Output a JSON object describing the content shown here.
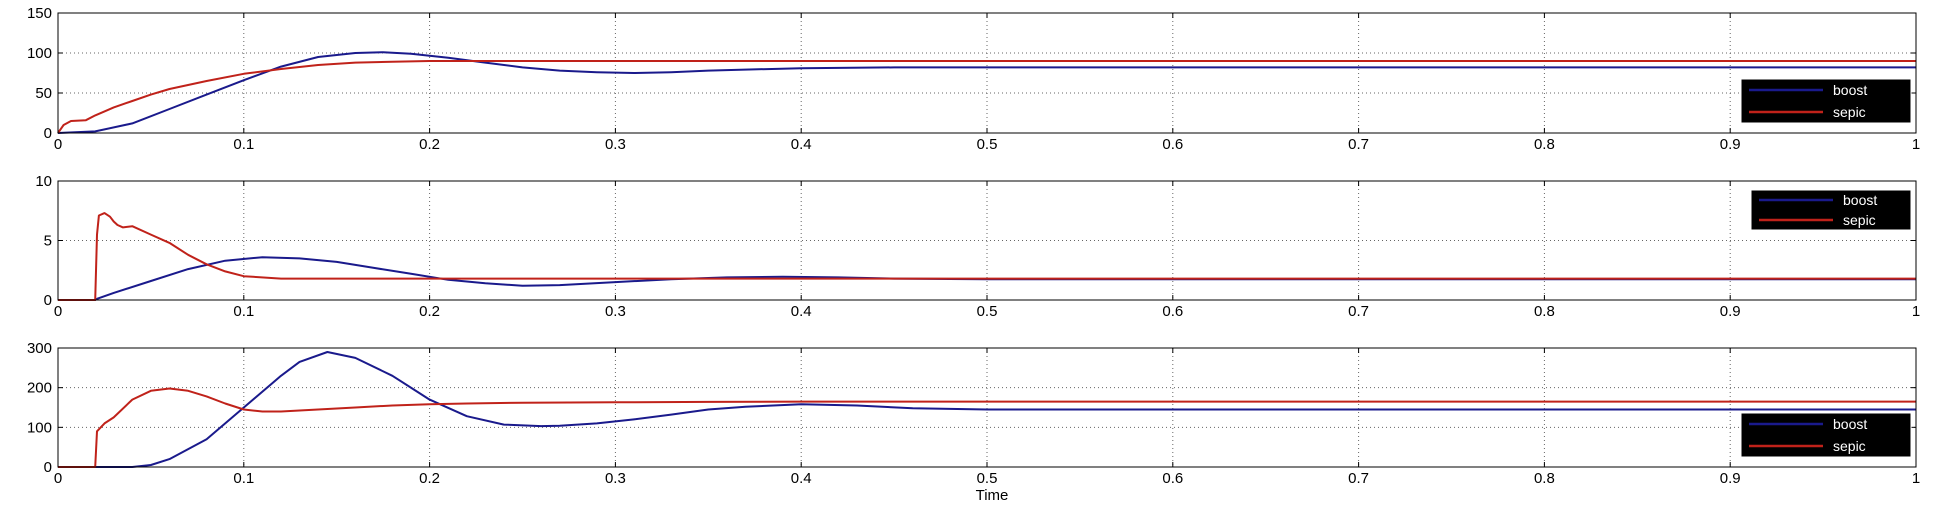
{
  "xlabel": "Time",
  "colors": {
    "boost": "#1a1a8c",
    "sepic": "#c0221a",
    "legend_bg": "#000000"
  },
  "chart_data": [
    {
      "type": "line",
      "xlim": [
        0,
        1
      ],
      "ylim": [
        0,
        150
      ],
      "xticks": [
        "0",
        "0.1",
        "0.2",
        "0.3",
        "0.4",
        "0.5",
        "0.6",
        "0.7",
        "0.8",
        "0.9",
        "1"
      ],
      "yticks": [
        "0",
        "50",
        "100",
        "150"
      ],
      "grid": true,
      "legend_position": "bottom-right",
      "series": [
        {
          "name": "boost",
          "x": [
            0,
            0.02,
            0.04,
            0.06,
            0.08,
            0.1,
            0.12,
            0.14,
            0.16,
            0.175,
            0.19,
            0.21,
            0.23,
            0.25,
            0.27,
            0.29,
            0.31,
            0.33,
            0.35,
            0.4,
            0.45,
            0.5,
            0.6,
            0.7,
            0.8,
            0.9,
            1.0
          ],
          "y": [
            0,
            2,
            12,
            30,
            48,
            66,
            83,
            95,
            100,
            101,
            99,
            94,
            88,
            82,
            78,
            76,
            75,
            76,
            78,
            81,
            82,
            82,
            82,
            82,
            82,
            82,
            82
          ]
        },
        {
          "name": "sepic",
          "x": [
            0,
            0.003,
            0.007,
            0.015,
            0.02,
            0.025,
            0.03,
            0.04,
            0.05,
            0.06,
            0.08,
            0.1,
            0.12,
            0.14,
            0.16,
            0.18,
            0.2,
            0.22,
            0.25,
            0.3,
            0.4,
            0.5,
            0.6,
            0.7,
            0.8,
            0.9,
            1.0
          ],
          "y": [
            0,
            10,
            15,
            16,
            22,
            27,
            32,
            40,
            48,
            55,
            65,
            74,
            80,
            85,
            88,
            89,
            90,
            90,
            90,
            90,
            90,
            90,
            90,
            90,
            90,
            90,
            90
          ]
        }
      ]
    },
    {
      "type": "line",
      "xlim": [
        0,
        1
      ],
      "ylim": [
        0,
        10
      ],
      "xticks": [
        "0",
        "0.1",
        "0.2",
        "0.3",
        "0.4",
        "0.5",
        "0.6",
        "0.7",
        "0.8",
        "0.9",
        "1"
      ],
      "yticks": [
        "0",
        "5",
        "10"
      ],
      "grid": true,
      "legend_position": "top-right",
      "series": [
        {
          "name": "boost",
          "x": [
            0,
            0.02,
            0.021,
            0.03,
            0.05,
            0.07,
            0.09,
            0.11,
            0.13,
            0.15,
            0.17,
            0.19,
            0.21,
            0.23,
            0.25,
            0.27,
            0.3,
            0.33,
            0.36,
            0.39,
            0.42,
            0.45,
            0.5,
            0.6,
            0.7,
            0.8,
            0.9,
            1.0
          ],
          "y": [
            0,
            0,
            0.1,
            0.6,
            1.6,
            2.6,
            3.3,
            3.6,
            3.5,
            3.2,
            2.7,
            2.2,
            1.7,
            1.4,
            1.2,
            1.25,
            1.5,
            1.75,
            1.9,
            1.95,
            1.9,
            1.8,
            1.75,
            1.75,
            1.75,
            1.75,
            1.75,
            1.75
          ]
        },
        {
          "name": "sepic",
          "x": [
            0,
            0.02,
            0.021,
            0.022,
            0.025,
            0.028,
            0.03,
            0.032,
            0.035,
            0.04,
            0.05,
            0.06,
            0.07,
            0.08,
            0.09,
            0.1,
            0.12,
            0.15,
            0.2,
            0.3,
            0.4,
            0.5,
            0.6,
            0.7,
            0.8,
            0.9,
            1.0
          ],
          "y": [
            0,
            0,
            5.5,
            7.1,
            7.3,
            7.0,
            6.6,
            6.3,
            6.1,
            6.2,
            5.5,
            4.8,
            3.8,
            3.0,
            2.4,
            2.0,
            1.8,
            1.8,
            1.8,
            1.8,
            1.8,
            1.8,
            1.8,
            1.8,
            1.8,
            1.8,
            1.8
          ]
        }
      ]
    },
    {
      "type": "line",
      "xlim": [
        0,
        1
      ],
      "ylim": [
        0,
        300
      ],
      "xticks": [
        "0",
        "0.1",
        "0.2",
        "0.3",
        "0.4",
        "0.5",
        "0.6",
        "0.7",
        "0.8",
        "0.9",
        "1"
      ],
      "yticks": [
        "0",
        "100",
        "200",
        "300"
      ],
      "grid": true,
      "legend_position": "bottom-right",
      "series": [
        {
          "name": "boost",
          "x": [
            0,
            0.02,
            0.04,
            0.05,
            0.06,
            0.08,
            0.1,
            0.12,
            0.13,
            0.145,
            0.16,
            0.18,
            0.2,
            0.22,
            0.24,
            0.26,
            0.27,
            0.29,
            0.31,
            0.33,
            0.35,
            0.37,
            0.4,
            0.43,
            0.46,
            0.5,
            0.6,
            0.7,
            0.8,
            0.9,
            1.0
          ],
          "y": [
            0,
            0,
            0,
            5,
            20,
            70,
            150,
            230,
            265,
            290,
            275,
            230,
            170,
            128,
            107,
            103,
            104,
            110,
            120,
            132,
            145,
            152,
            158,
            155,
            148,
            145,
            145,
            145,
            145,
            145,
            145
          ]
        },
        {
          "name": "sepic",
          "x": [
            0,
            0.02,
            0.021,
            0.025,
            0.03,
            0.04,
            0.05,
            0.06,
            0.07,
            0.08,
            0.09,
            0.1,
            0.11,
            0.12,
            0.14,
            0.16,
            0.18,
            0.2,
            0.22,
            0.25,
            0.3,
            0.35,
            0.4,
            0.5,
            0.6,
            0.7,
            0.8,
            0.9,
            1.0
          ],
          "y": [
            0,
            0,
            90,
            110,
            125,
            170,
            192,
            198,
            192,
            178,
            160,
            145,
            140,
            140,
            145,
            150,
            155,
            158,
            160,
            162,
            163,
            164,
            165,
            165,
            165,
            165,
            165,
            165,
            165
          ]
        }
      ]
    }
  ]
}
